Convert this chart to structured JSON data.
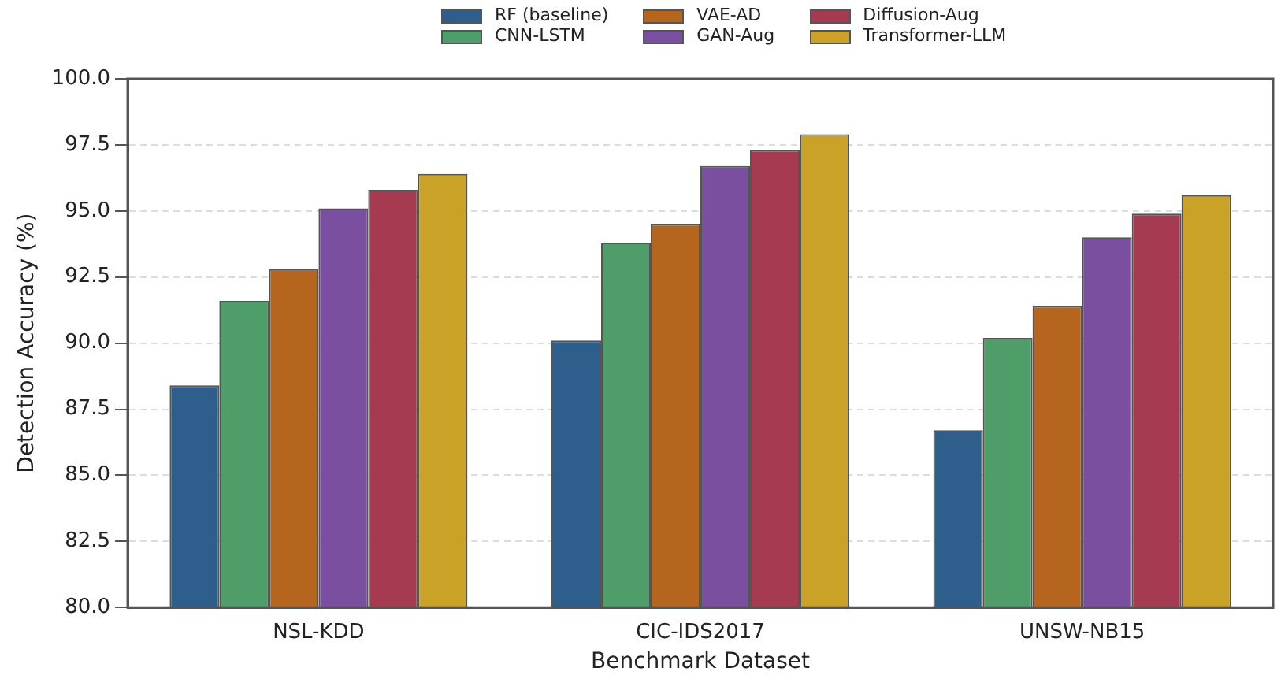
{
  "chart_data": {
    "type": "bar",
    "xlabel": "Benchmark Dataset",
    "ylabel": "Detection Accuracy (%)",
    "categories": [
      "NSL-KDD",
      "CIC-IDS2017",
      "UNSW-NB15"
    ],
    "series": [
      {
        "name": "RF (baseline)",
        "color": "#2e5e8c",
        "values": [
          88.4,
          90.1,
          86.7
        ]
      },
      {
        "name": "CNN-LSTM",
        "color": "#4f9d69",
        "values": [
          91.6,
          93.8,
          90.2
        ]
      },
      {
        "name": "VAE-AD",
        "color": "#b5651d",
        "values": [
          92.8,
          94.5,
          91.4
        ]
      },
      {
        "name": "GAN-Aug",
        "color": "#7b4fa0",
        "values": [
          95.1,
          96.7,
          94.0
        ]
      },
      {
        "name": "Diffusion-Aug",
        "color": "#a63a50",
        "values": [
          95.8,
          97.3,
          94.9
        ]
      },
      {
        "name": "Transformer-LLM",
        "color": "#c9a227",
        "values": [
          96.4,
          97.9,
          95.6
        ]
      }
    ],
    "ylim": [
      80,
      100
    ],
    "yticks": [
      {
        "value": 80,
        "label": "80.0"
      },
      {
        "value": 82.5,
        "label": "82.5"
      },
      {
        "value": 85,
        "label": "85.0"
      },
      {
        "value": 87.5,
        "label": "87.5"
      },
      {
        "value": 90,
        "label": "90.0"
      },
      {
        "value": 92.5,
        "label": "92.5"
      },
      {
        "value": 95,
        "label": "95.0"
      },
      {
        "value": 97.5,
        "label": "97.5"
      },
      {
        "value": 100,
        "label": "100.0"
      }
    ],
    "grid": "y",
    "legend": "top"
  }
}
